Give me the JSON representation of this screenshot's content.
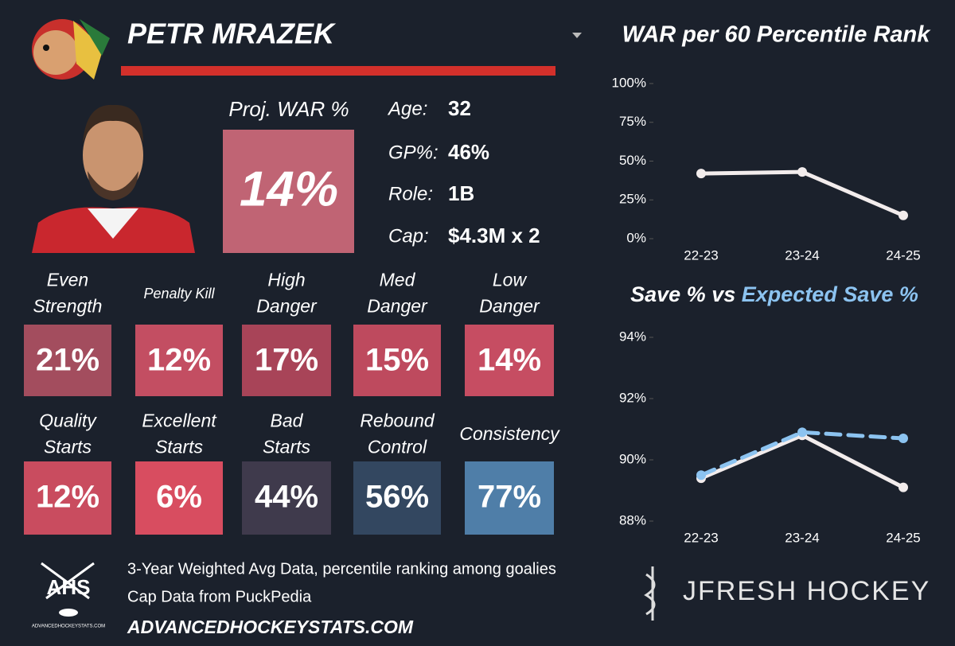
{
  "player": {
    "name": "PETR MRAZEK"
  },
  "proj_war": {
    "label": "Proj. WAR %",
    "value": "14%",
    "color": "#c06474"
  },
  "bio": [
    {
      "label": "Age:",
      "value": "32"
    },
    {
      "label": "GP%:",
      "value": "46%"
    },
    {
      "label": "Role:",
      "value": "1B"
    },
    {
      "label": "Cap:",
      "value": "$4.3M x 2"
    }
  ],
  "tiles": [
    {
      "label": "Even\nStrength",
      "value": "21%",
      "color": "#a34d5e"
    },
    {
      "label": "Penalty Kill",
      "value": "12%",
      "color": "#c34e62"
    },
    {
      "label": "High\nDanger",
      "value": "17%",
      "color": "#a84458"
    },
    {
      "label": "Med\nDanger",
      "value": "15%",
      "color": "#be4a5e"
    },
    {
      "label": "Low\nDanger",
      "value": "14%",
      "color": "#c64d62"
    },
    {
      "label": "Quality\nStarts",
      "value": "12%",
      "color": "#c94c5f"
    },
    {
      "label": "Excellent\nStarts",
      "value": "6%",
      "color": "#d84d60"
    },
    {
      "label": "Bad\nStarts",
      "value": "44%",
      "color": "#3f3a4c"
    },
    {
      "label": "Rebound\nControl",
      "value": "56%",
      "color": "#334760"
    },
    {
      "label": "Consistency",
      "value": "77%",
      "color": "#4f7ea8"
    }
  ],
  "footer": {
    "logo": "AHS",
    "logo_caption": "ADVANCEDHOCKEYSTATS.COM",
    "notes": [
      "3-Year Weighted Avg Data, percentile ranking among goalies",
      "Cap Data from PuckPedia"
    ],
    "site": "ADVANCEDHOCKEYSTATS.COM",
    "brand": "JFRESH HOCKEY"
  },
  "chart_data": [
    {
      "type": "line",
      "title": "WAR per 60 Percentile Rank",
      "categories": [
        "22-23",
        "23-24",
        "24-25"
      ],
      "series": [
        {
          "color": "#f2ecec",
          "values": [
            42,
            43,
            15
          ]
        }
      ],
      "ylim": [
        0,
        100
      ],
      "yticks": [
        {
          "value": 0,
          "label": "0%"
        },
        {
          "value": 25,
          "label": "25%"
        },
        {
          "value": 50,
          "label": "50%"
        },
        {
          "value": 75,
          "label": "75%"
        },
        {
          "value": 100,
          "label": "100%"
        }
      ]
    },
    {
      "type": "line",
      "title_link": "vs",
      "categories": [
        "22-23",
        "23-24",
        "24-25"
      ],
      "series": [
        {
          "name": "Save %",
          "color": "#f2ecec",
          "dash": false,
          "values": [
            89.4,
            90.8,
            89.1
          ]
        },
        {
          "name": "Expected Save %",
          "color": "#8cc3f0",
          "dash": true,
          "values": [
            89.5,
            90.9,
            90.7
          ]
        }
      ],
      "ylim": [
        88,
        94
      ],
      "yticks": [
        {
          "value": 88,
          "label": "88%"
        },
        {
          "value": 90,
          "label": "90%"
        },
        {
          "value": 92,
          "label": "92%"
        },
        {
          "value": 94,
          "label": "94%"
        }
      ]
    }
  ]
}
